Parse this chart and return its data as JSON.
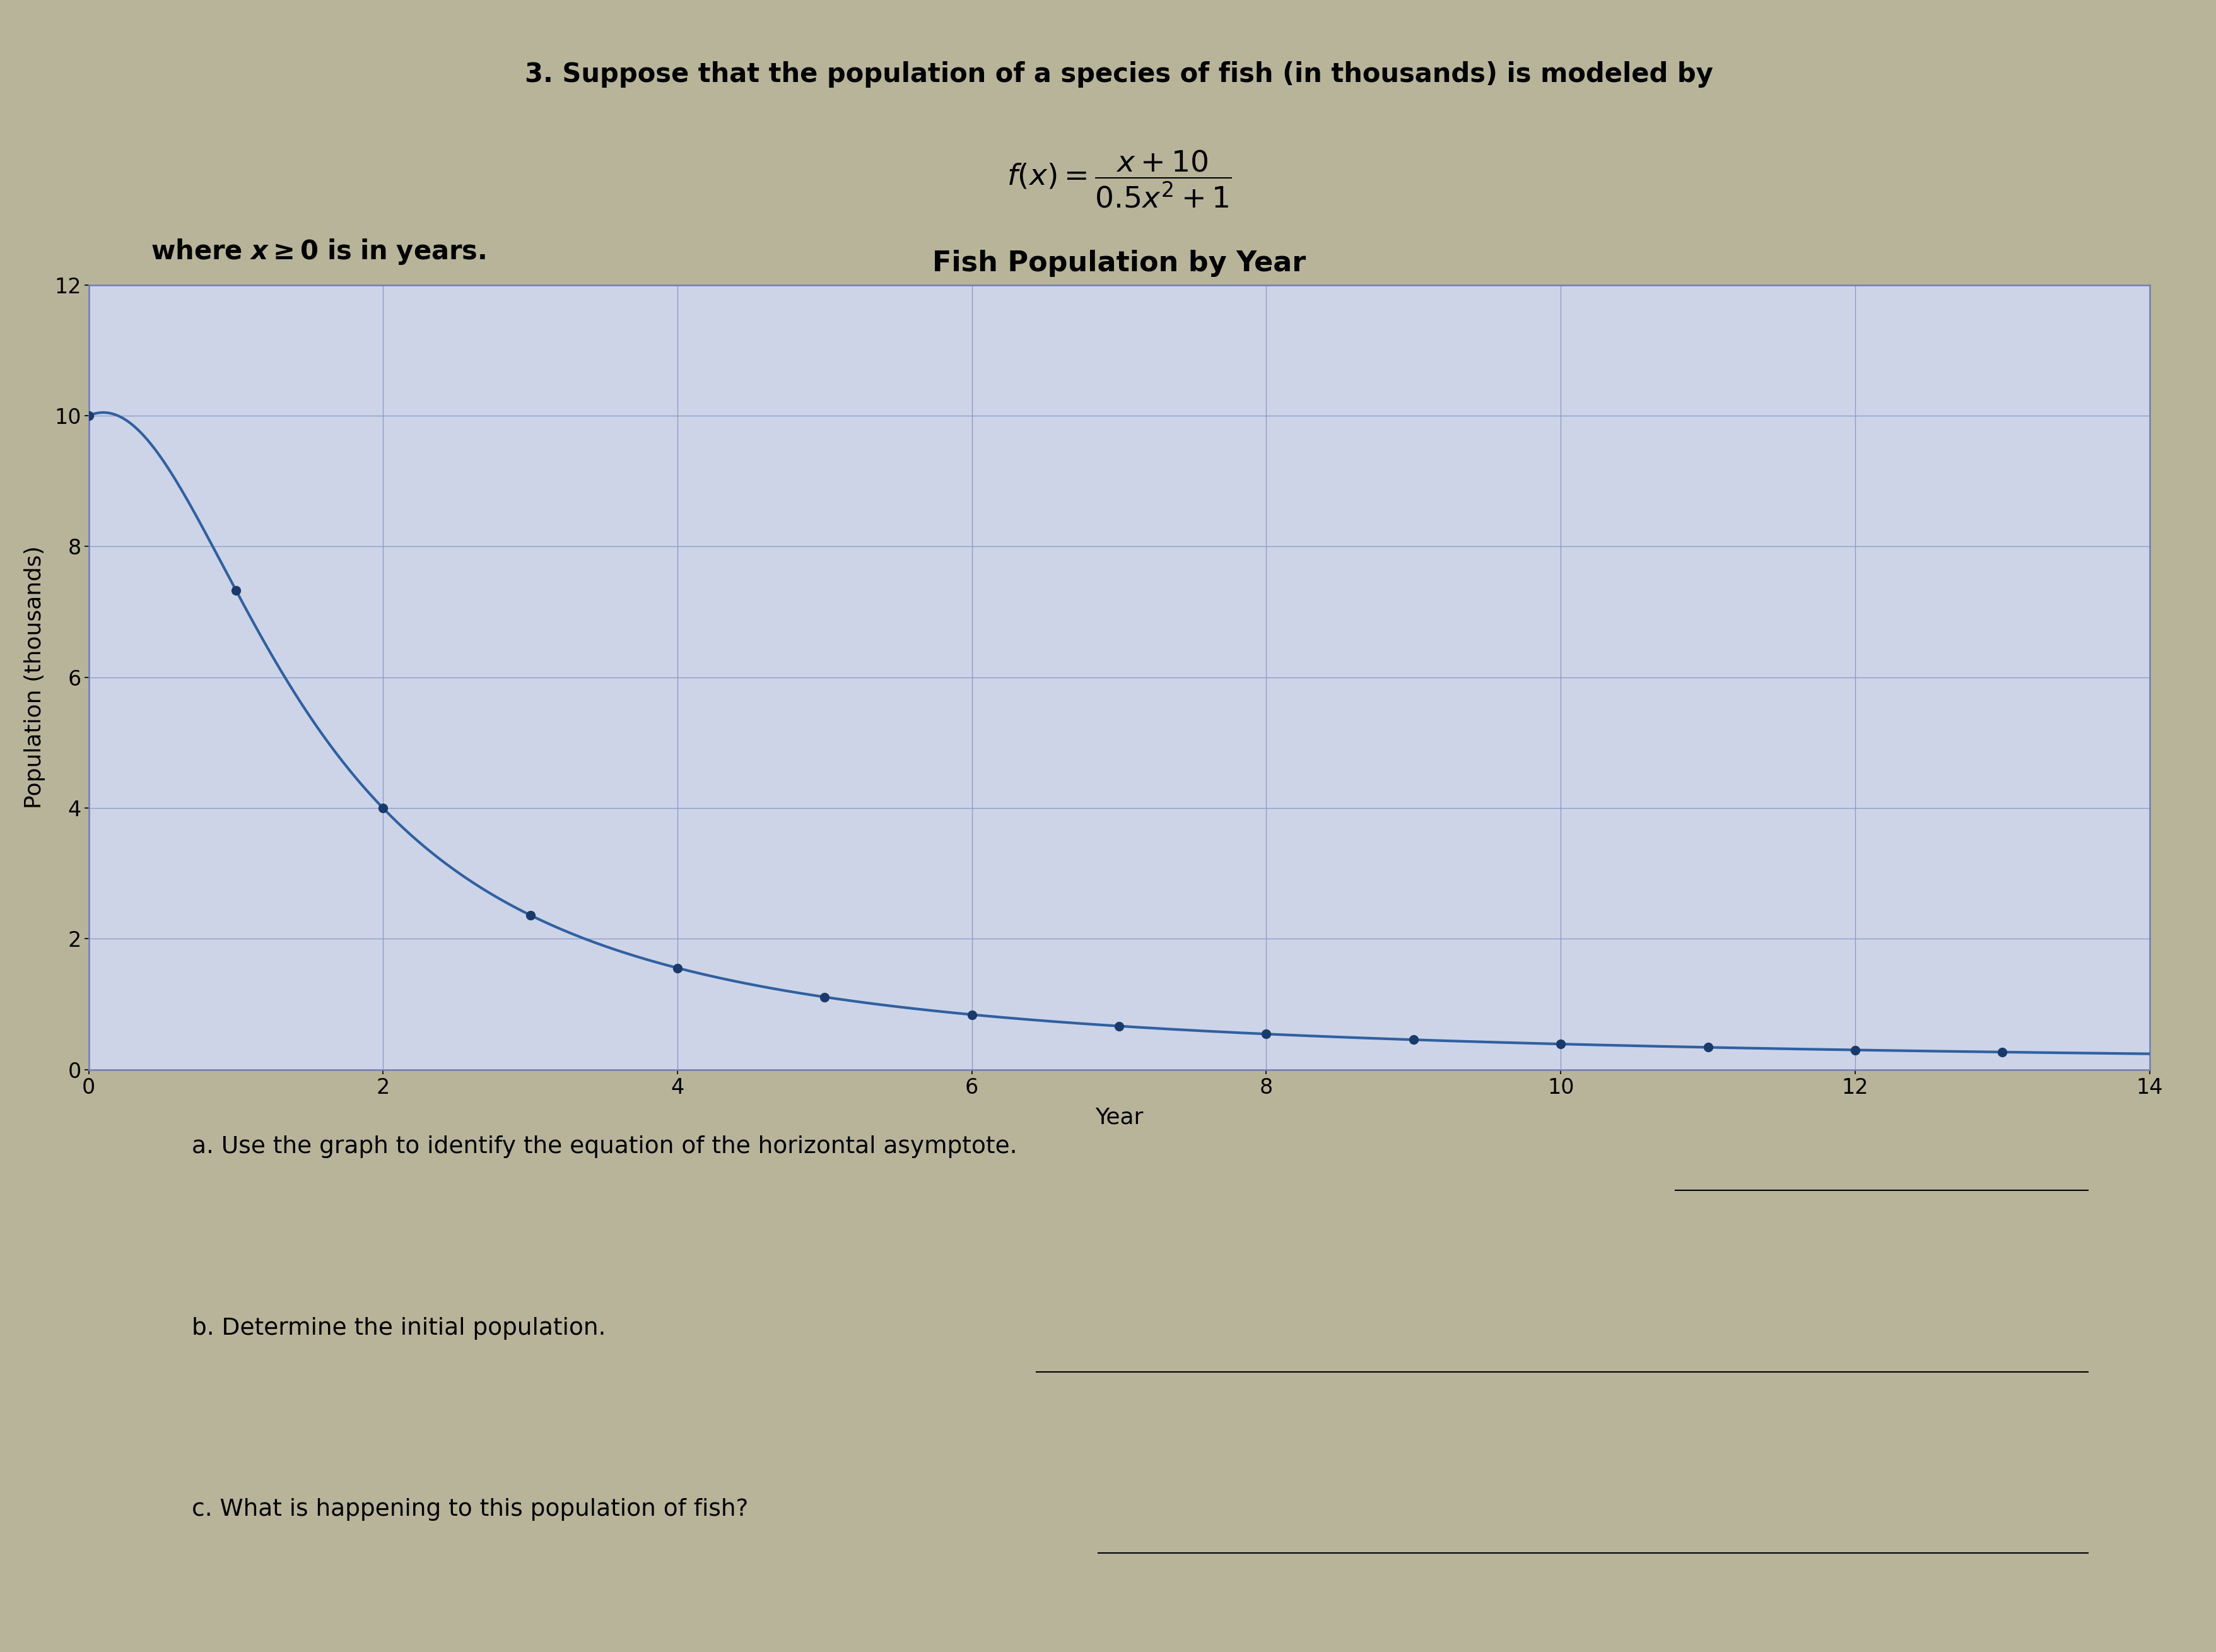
{
  "title": "Fish Population by Year",
  "xlabel": "Year",
  "ylabel": "Population (thousands)",
  "xlim": [
    0,
    14
  ],
  "ylim": [
    0,
    12
  ],
  "xticks": [
    0,
    2,
    4,
    6,
    8,
    10,
    12,
    14
  ],
  "yticks": [
    0,
    2,
    4,
    6,
    8,
    10,
    12
  ],
  "line_color": "#3060a0",
  "marker_color": "#1a3a6b",
  "bg_color": "#b8b49a",
  "plot_bg_color": "#cdd4e8",
  "plot_border_color": "#7080b0",
  "grid_color": "#8898c8",
  "title_fontsize": 32,
  "label_fontsize": 26,
  "tick_fontsize": 24,
  "header1_fontsize": 30,
  "formula_fontsize": 34,
  "where_fontsize": 30,
  "question_fontsize": 27,
  "header_text_1": "3. Suppose that the population of a species of fish (in thousands) is modeled by",
  "question_a": "a. Use the graph to identify the equation of the horizontal asymptote.",
  "question_b": "b. Determine the initial population.",
  "question_c": "c. What is happening to this population of fish?",
  "marker_x": [
    0,
    1,
    2,
    3,
    4,
    5,
    6,
    7,
    8,
    9,
    10,
    11,
    12,
    13
  ],
  "line_width": 3.0,
  "marker_size": 10
}
